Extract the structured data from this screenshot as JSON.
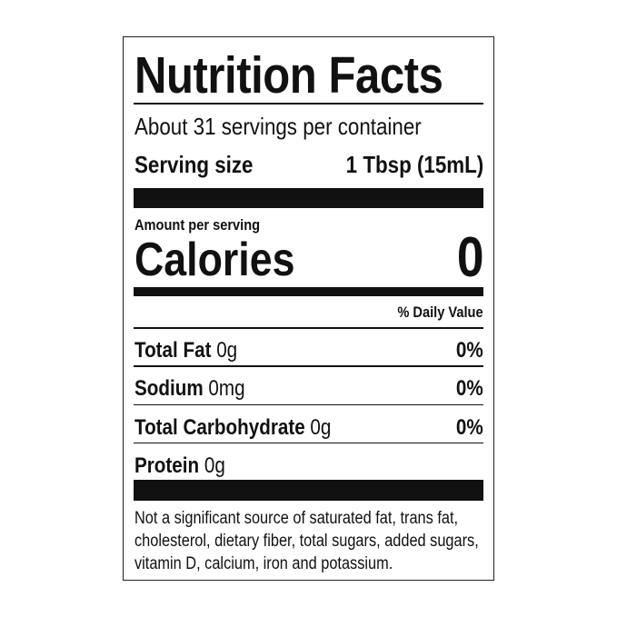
{
  "title": "Nutrition Facts",
  "servings_per_container": "About 31 servings per container",
  "serving_size": {
    "label": "Serving size",
    "value": "1 Tbsp (15mL)"
  },
  "amount_per_serving": "Amount per serving",
  "calories": {
    "label": "Calories",
    "value": "0"
  },
  "daily_value_header": "% Daily Value",
  "nutrients": [
    {
      "name": "Total Fat",
      "amount": "0g",
      "dv": "0%"
    },
    {
      "name": "Sodium",
      "amount": "0mg",
      "dv": "0%"
    },
    {
      "name": "Total Carbohydrate",
      "amount": "0g",
      "dv": "0%"
    },
    {
      "name": "Protein",
      "amount": "0g"
    }
  ],
  "footnote": [
    "Not a significant source of saturated fat, trans fat,",
    "cholesterol, dietary fiber, total sugars, added sugars,",
    "vitamin D, calcium, iron and potassium."
  ]
}
